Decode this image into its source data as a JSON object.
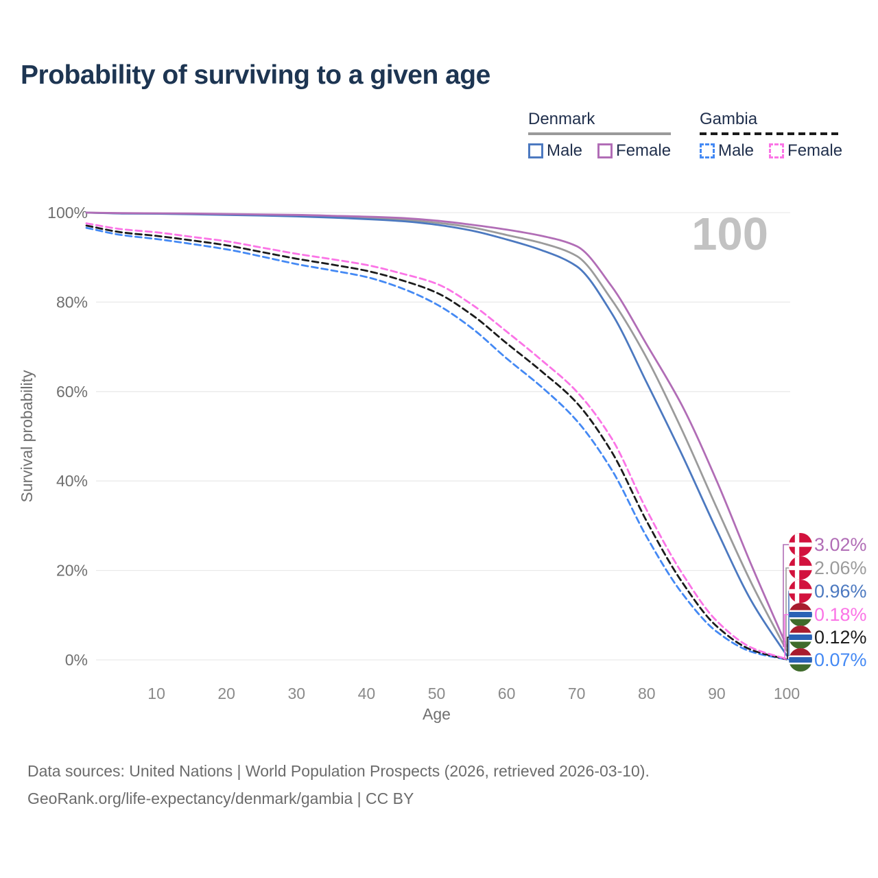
{
  "page": {
    "title": "Probability of surviving to a given age",
    "footer_line1": "Data sources: United Nations | World Population Prospects (2026, retrieved 2026-03-10).",
    "footer_line2": "GeoRank.org/life-expectancy/denmark/gambia | CC BY"
  },
  "legend": {
    "groups": [
      {
        "label": "Denmark",
        "line_style": "solid",
        "underline_color": "#9a9a9a",
        "items": [
          {
            "label": "Male",
            "color": "#4c79c0",
            "line_style": "solid"
          },
          {
            "label": "Female",
            "color": "#b16db6",
            "line_style": "solid"
          }
        ]
      },
      {
        "label": "Gambia",
        "line_style": "dashed",
        "underline_color": "#1b1b1b",
        "items": [
          {
            "label": "Male",
            "color": "#4489f4",
            "line_style": "dashed"
          },
          {
            "label": "Female",
            "color": "#fb74e6",
            "line_style": "dashed"
          }
        ]
      }
    ]
  },
  "chart_data": {
    "type": "line",
    "title": "Probability of surviving to a given age",
    "xlabel": "Age",
    "ylabel": "Survival probability",
    "xlim": [
      0,
      100
    ],
    "ylim": [
      0,
      100
    ],
    "grid": "horizontal",
    "legend_position": "top-right",
    "watermark": "100",
    "x_ticks": [
      10,
      20,
      30,
      40,
      50,
      60,
      70,
      80,
      90,
      100
    ],
    "y_ticks": [
      0,
      20,
      40,
      60,
      80,
      100
    ],
    "y_tick_labels": [
      "0%",
      "20%",
      "40%",
      "60%",
      "80%",
      "100%"
    ],
    "x": [
      0,
      5,
      10,
      15,
      20,
      25,
      30,
      35,
      40,
      45,
      50,
      55,
      60,
      65,
      70,
      75,
      80,
      85,
      90,
      95,
      100
    ],
    "series": [
      {
        "name": "Denmark Both sexes",
        "country": "Denmark",
        "sex": "both",
        "color": "#9b9b9b",
        "line_style": "solid",
        "values": [
          100,
          99.85,
          99.8,
          99.7,
          99.6,
          99.5,
          99.35,
          99.15,
          98.85,
          98.45,
          97.75,
          96.7,
          95.0,
          93.2,
          90.3,
          80.5,
          67.5,
          51.5,
          34,
          17,
          2.06
        ],
        "end": {
          "label": "2.06%",
          "color": "#9b9b9b",
          "flag": "denmark",
          "row": 1
        }
      },
      {
        "name": "Denmark Male",
        "country": "Denmark",
        "sex": "male",
        "color": "#4c79c0",
        "line_style": "solid",
        "values": [
          100,
          99.8,
          99.75,
          99.65,
          99.5,
          99.35,
          99.15,
          98.9,
          98.55,
          98.1,
          97.3,
          96.0,
          94.0,
          91.6,
          88.0,
          77.5,
          62,
          46,
          29,
          13,
          0.96
        ],
        "end": {
          "label": "0.96%",
          "color": "#4c79c0",
          "flag": "denmark",
          "row": 2
        }
      },
      {
        "name": "Denmark Female",
        "country": "Denmark",
        "sex": "female",
        "color": "#b16db6",
        "line_style": "solid",
        "values": [
          100,
          99.9,
          99.85,
          99.8,
          99.7,
          99.6,
          99.5,
          99.3,
          99.1,
          98.8,
          98.2,
          97.3,
          96.2,
          94.8,
          92.5,
          83.5,
          70.5,
          57,
          40,
          21,
          3.02
        ],
        "end": {
          "label": "3.02%",
          "color": "#b16db6",
          "flag": "denmark",
          "row": 0
        }
      },
      {
        "name": "Gambia Male",
        "country": "Gambia",
        "sex": "male",
        "color": "#4489f4",
        "line_style": "dashed",
        "values": [
          96.6,
          95.0,
          94.1,
          93.0,
          91.8,
          90.2,
          88.5,
          87.1,
          85.6,
          83.1,
          79.5,
          74.2,
          67.4,
          61,
          53.5,
          42.5,
          27.5,
          15,
          6.3,
          1.8,
          0.07
        ],
        "end": {
          "label": "0.07%",
          "color": "#4489f4",
          "flag": "gambia",
          "row": 5
        }
      },
      {
        "name": "Gambia Both sexes",
        "country": "Gambia",
        "sex": "both",
        "color": "#1b1b1b",
        "line_style": "dashed",
        "values": [
          97.1,
          95.6,
          94.8,
          93.8,
          92.7,
          91.2,
          89.7,
          88.4,
          87.0,
          84.9,
          82.1,
          77.2,
          70.8,
          64.5,
          57.5,
          46.5,
          31,
          17.5,
          7.5,
          2.2,
          0.12
        ],
        "end": {
          "label": "0.12%",
          "color": "#1b1b1b",
          "flag": "gambia",
          "row": 4
        }
      },
      {
        "name": "Gambia Female",
        "country": "Gambia",
        "sex": "female",
        "color": "#fb74e6",
        "line_style": "dashed",
        "values": [
          97.6,
          96.3,
          95.6,
          94.6,
          93.6,
          92.2,
          90.8,
          89.6,
          88.3,
          86.4,
          84.1,
          79.5,
          73.4,
          67,
          60,
          49.5,
          33.5,
          19.5,
          8.7,
          2.7,
          0.18
        ],
        "end": {
          "label": "0.18%",
          "color": "#fb74e6",
          "flag": "gambia",
          "row": 3
        }
      }
    ],
    "flags": {
      "denmark": {
        "background": "#d2123d",
        "cross": "#ffffff"
      },
      "gambia": {
        "red": "#a81c2e",
        "blue": "#2a62b5",
        "green": "#3f6b2b",
        "white": "#ffffff"
      }
    },
    "colors": {
      "grid": "#e9e9e9",
      "watermark": "#c2c2c2",
      "y_tick_text": "#6f6f6f",
      "x_tick_text": "#8a8a8a",
      "axis_title_text": "#6f6f6f"
    }
  }
}
